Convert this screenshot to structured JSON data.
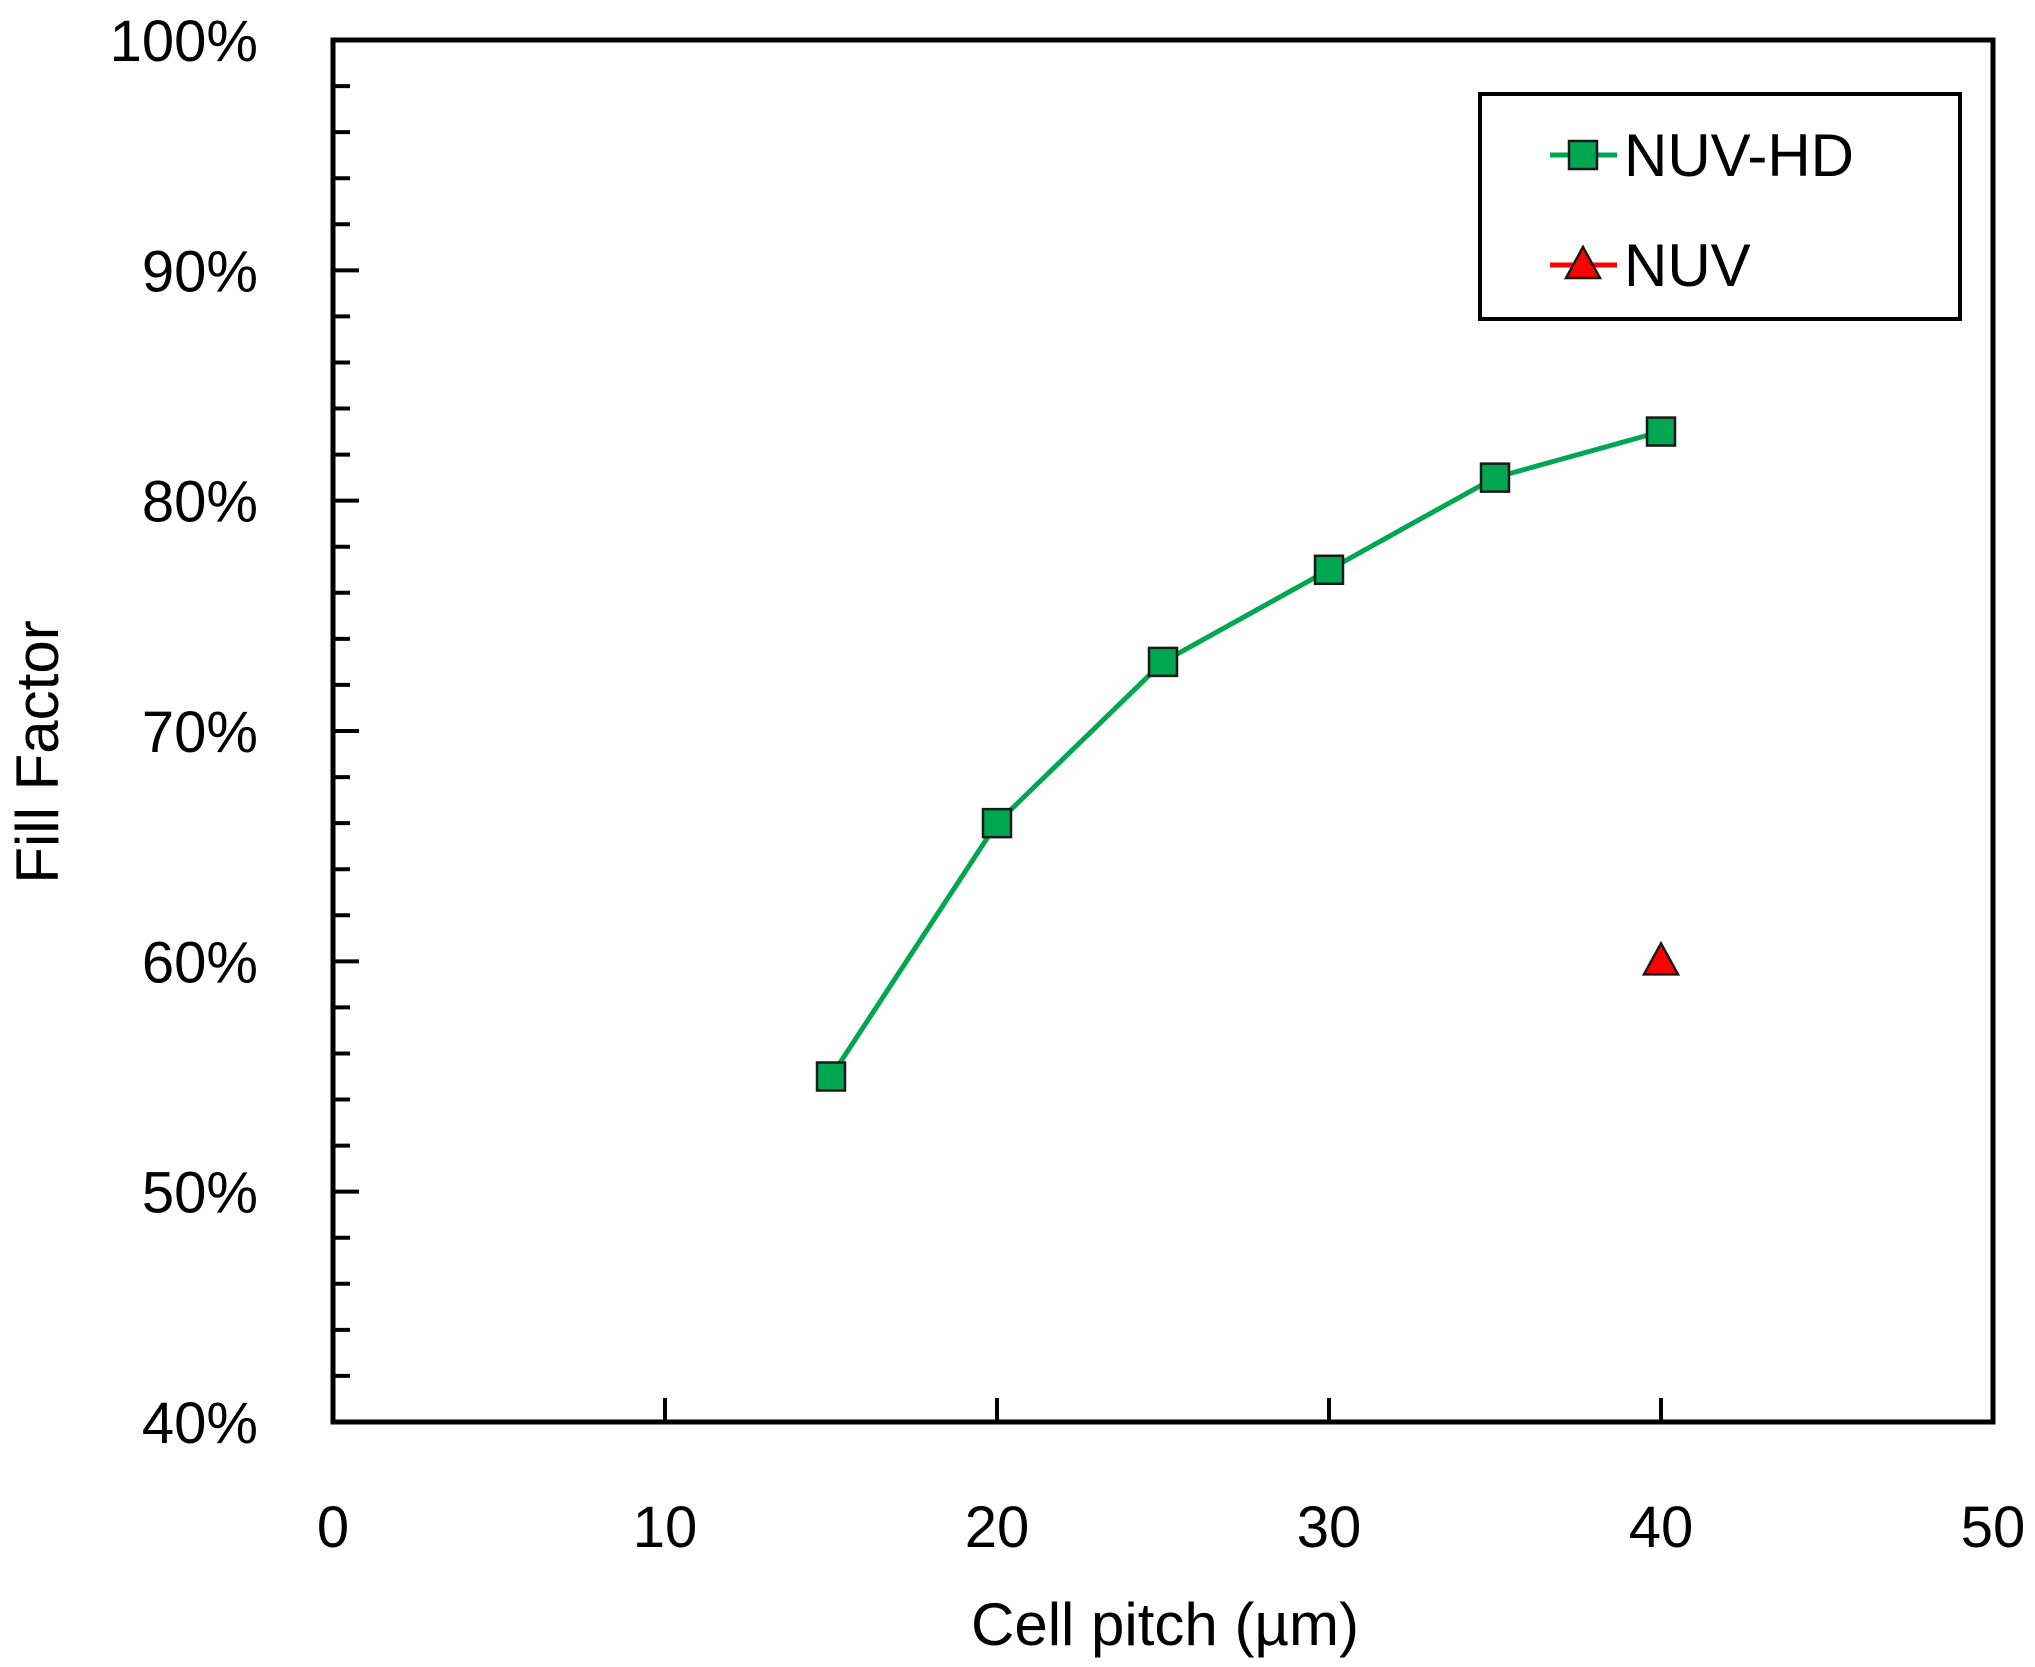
{
  "chart_data": {
    "type": "line",
    "title": "",
    "xlabel": "Cell pitch (µm)",
    "ylabel": "Fill Factor",
    "xlim": [
      0,
      50
    ],
    "ylim": [
      0.4,
      1.0
    ],
    "x_ticks": [
      0,
      10,
      20,
      30,
      40,
      50
    ],
    "x_tick_labels": [
      "0",
      "10",
      "20",
      "30",
      "40",
      "50"
    ],
    "y_ticks": [
      0.4,
      0.5,
      0.6,
      0.7,
      0.8,
      0.9,
      1.0
    ],
    "y_tick_labels": [
      "40%",
      "50%",
      "60%",
      "70%",
      "80%",
      "90%",
      "100%"
    ],
    "grid": false,
    "legend_position": "top-right",
    "series": [
      {
        "name": "NUV-HD",
        "color": "#00a650",
        "marker": "square",
        "line": true,
        "x": [
          15,
          20,
          25,
          30,
          35,
          40
        ],
        "y": [
          0.55,
          0.66,
          0.73,
          0.77,
          0.81,
          0.83
        ]
      },
      {
        "name": "NUV",
        "color": "#ff0000",
        "marker": "triangle",
        "line": false,
        "x": [
          40
        ],
        "y": [
          0.6
        ]
      }
    ]
  }
}
